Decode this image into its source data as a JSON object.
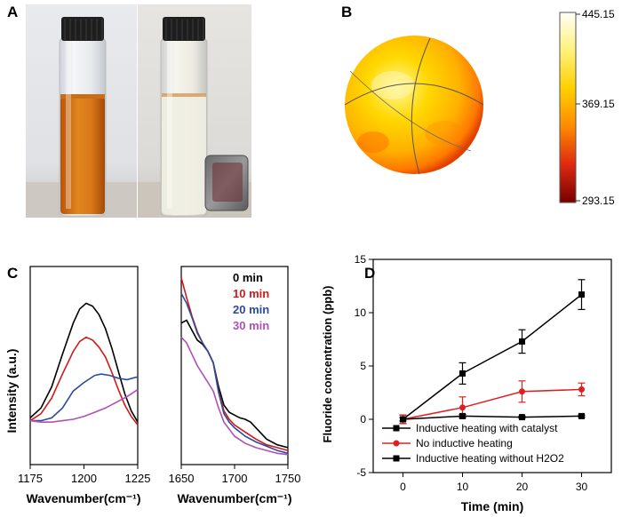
{
  "panels": {
    "A": {
      "label": "A"
    },
    "B": {
      "label": "B",
      "colorbar_ticks": [
        "445.15",
        "369.15",
        "293.15"
      ],
      "colorbar_colors": [
        "#fffef8",
        "#ffe85a",
        "#ffb000",
        "#ff6a00",
        "#d01010",
        "#7a0000"
      ]
    },
    "C": {
      "label": "C"
    },
    "D": {
      "label": "D"
    }
  },
  "chart_data": [
    {
      "type": "line",
      "panel": "C-left",
      "ylabel": "Intensity (a.u.)",
      "xlabel": "Wavenumber(cm⁻¹)",
      "xlim": [
        1175,
        1225
      ],
      "xticks": [
        "1175",
        "1200",
        "1225"
      ],
      "series": [
        {
          "name": "0 min",
          "color": "#000000",
          "x": [
            1175,
            1180,
            1185,
            1190,
            1195,
            1198,
            1201,
            1204,
            1207,
            1210,
            1213,
            1216,
            1219,
            1222,
            1225
          ],
          "y": [
            0.33,
            0.4,
            0.55,
            0.78,
            1.0,
            1.1,
            1.14,
            1.12,
            1.06,
            0.96,
            0.82,
            0.66,
            0.5,
            0.38,
            0.3
          ]
        },
        {
          "name": "10 min",
          "color": "#d01a1a",
          "x": [
            1175,
            1180,
            1185,
            1190,
            1195,
            1198,
            1201,
            1204,
            1207,
            1210,
            1213,
            1216,
            1219,
            1222,
            1225
          ],
          "y": [
            0.31,
            0.36,
            0.47,
            0.64,
            0.8,
            0.87,
            0.9,
            0.88,
            0.83,
            0.76,
            0.65,
            0.53,
            0.42,
            0.34,
            0.28
          ]
        },
        {
          "name": "20 min",
          "color": "#2b4c9b",
          "x": [
            1175,
            1180,
            1185,
            1190,
            1195,
            1200,
            1205,
            1208,
            1212,
            1216,
            1220,
            1225
          ],
          "y": [
            0.31,
            0.31,
            0.33,
            0.4,
            0.52,
            0.58,
            0.63,
            0.64,
            0.63,
            0.61,
            0.6,
            0.62
          ]
        },
        {
          "name": "30 min",
          "color": "#b050b8",
          "x": [
            1175,
            1180,
            1185,
            1190,
            1195,
            1200,
            1205,
            1210,
            1215,
            1220,
            1225
          ],
          "y": [
            0.31,
            0.3,
            0.3,
            0.31,
            0.32,
            0.34,
            0.37,
            0.4,
            0.44,
            0.48,
            0.53
          ]
        }
      ]
    },
    {
      "type": "line",
      "panel": "C-right",
      "xlabel": "Wavenumber(cm⁻¹)",
      "xlim": [
        1650,
        1750
      ],
      "xticks": [
        "1650",
        "1700",
        "1750"
      ],
      "legend": [
        "0 min",
        "10 min",
        "20 min",
        "30 min"
      ],
      "series": [
        {
          "name": "0 min",
          "color": "#000000",
          "x": [
            1650,
            1655,
            1660,
            1665,
            1670,
            1675,
            1680,
            1685,
            1690,
            1695,
            1700,
            1705,
            1710,
            1715,
            1720,
            1730,
            1740,
            1750
          ],
          "y": [
            1.0,
            1.02,
            0.95,
            0.88,
            0.85,
            0.8,
            0.72,
            0.55,
            0.42,
            0.37,
            0.35,
            0.33,
            0.32,
            0.3,
            0.26,
            0.18,
            0.14,
            0.12
          ]
        },
        {
          "name": "10 min",
          "color": "#d01a1a",
          "x": [
            1650,
            1655,
            1660,
            1665,
            1670,
            1675,
            1680,
            1685,
            1690,
            1695,
            1700,
            1710,
            1720,
            1730,
            1740,
            1750
          ],
          "y": [
            1.32,
            1.18,
            1.05,
            0.94,
            0.86,
            0.8,
            0.72,
            0.52,
            0.38,
            0.32,
            0.28,
            0.23,
            0.18,
            0.14,
            0.12,
            0.1
          ]
        },
        {
          "name": "20 min",
          "color": "#2b4c9b",
          "x": [
            1650,
            1655,
            1660,
            1665,
            1670,
            1675,
            1680,
            1685,
            1690,
            1695,
            1700,
            1710,
            1720,
            1730,
            1740,
            1750
          ],
          "y": [
            1.21,
            1.14,
            1.04,
            0.93,
            0.86,
            0.8,
            0.72,
            0.51,
            0.36,
            0.3,
            0.26,
            0.2,
            0.16,
            0.13,
            0.1,
            0.08
          ]
        },
        {
          "name": "30 min",
          "color": "#b050b8",
          "x": [
            1650,
            1655,
            1660,
            1665,
            1670,
            1675,
            1680,
            1685,
            1690,
            1695,
            1700,
            1710,
            1720,
            1730,
            1740,
            1750
          ],
          "y": [
            0.9,
            0.86,
            0.78,
            0.7,
            0.64,
            0.58,
            0.52,
            0.4,
            0.3,
            0.25,
            0.2,
            0.15,
            0.12,
            0.1,
            0.08,
            0.07
          ]
        }
      ]
    },
    {
      "type": "line",
      "panel": "D",
      "xlabel": "Time (min)",
      "ylabel": "Fluoride concentration (ppb)",
      "xlim": [
        -5,
        35
      ],
      "ylim": [
        -5,
        15
      ],
      "xticks": [
        0,
        10,
        20,
        30
      ],
      "yticks": [
        -5,
        0,
        5,
        10,
        15
      ],
      "series": [
        {
          "name": "Inductive heating with catalyst",
          "color": "#000000",
          "marker": "square",
          "x": [
            0,
            10,
            20,
            30
          ],
          "y": [
            0,
            4.3,
            7.3,
            11.7
          ],
          "err": [
            0.4,
            1.0,
            1.1,
            1.4
          ]
        },
        {
          "name": "No inductive heating",
          "color": "#e02020",
          "marker": "circle",
          "x": [
            0,
            10,
            20,
            30
          ],
          "y": [
            0,
            1.1,
            2.6,
            2.8
          ],
          "err": [
            0.4,
            1.0,
            1.0,
            0.6
          ]
        },
        {
          "name": "Inductive heating without H2O2",
          "color": "#000000",
          "marker": "square",
          "x": [
            0,
            10,
            20,
            30
          ],
          "y": [
            0,
            0.3,
            0.2,
            0.3
          ],
          "err": [
            0.15,
            0.15,
            0.1,
            0.1
          ]
        }
      ]
    }
  ]
}
